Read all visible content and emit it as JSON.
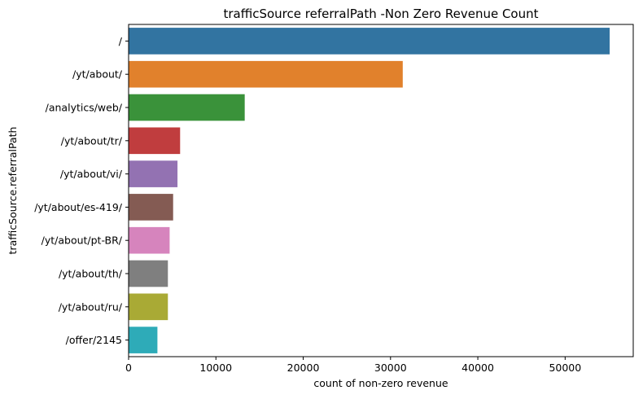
{
  "chart_data": {
    "type": "bar",
    "orientation": "horizontal",
    "title": "trafficSource referralPath -Non Zero Revenue Count",
    "xlabel": "count of non-zero revenue",
    "ylabel": "trafficSource.referralPath",
    "xlim": [
      0,
      57800
    ],
    "xticks": [
      0,
      10000,
      20000,
      30000,
      40000,
      50000
    ],
    "grid": false,
    "categories": [
      "/",
      "/yt/about/",
      "/analytics/web/",
      "/yt/about/tr/",
      "/yt/about/vi/",
      "/yt/about/es-419/",
      "/yt/about/pt-BR/",
      "/yt/about/th/",
      "/yt/about/ru/",
      "/offer/2145"
    ],
    "values": [
      55100,
      31400,
      13300,
      5900,
      5600,
      5100,
      4700,
      4500,
      4500,
      3300
    ],
    "colors": [
      "#3274a1",
      "#e1812c",
      "#3a923a",
      "#c03d3e",
      "#9372b2",
      "#845b53",
      "#d684bd",
      "#7f7f7f",
      "#a9aa35",
      "#2eabb8"
    ]
  }
}
